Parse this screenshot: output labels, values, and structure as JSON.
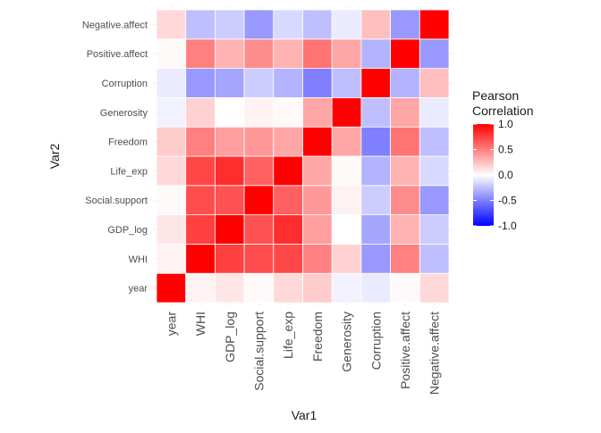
{
  "chart_data": {
    "type": "heatmap",
    "xlabel": "Var1",
    "ylabel": "Var2",
    "variables": [
      "year",
      "WHI",
      "GDP_log",
      "Social.support",
      "Life_exp",
      "Freedom",
      "Generosity",
      "Corruption",
      "Positive.affect",
      "Negative.affect"
    ],
    "matrix": [
      [
        1.0,
        0.05,
        0.1,
        0.02,
        0.15,
        0.2,
        -0.05,
        -0.08,
        0.02,
        0.15
      ],
      [
        0.05,
        1.0,
        0.75,
        0.7,
        0.72,
        0.5,
        0.18,
        -0.4,
        0.5,
        -0.25
      ],
      [
        0.1,
        0.75,
        1.0,
        0.68,
        0.82,
        0.38,
        0.0,
        -0.35,
        0.3,
        -0.2
      ],
      [
        0.02,
        0.7,
        0.68,
        1.0,
        0.62,
        0.4,
        0.05,
        -0.2,
        0.45,
        -0.4
      ],
      [
        0.15,
        0.72,
        0.82,
        0.62,
        1.0,
        0.35,
        0.02,
        -0.3,
        0.3,
        -0.15
      ],
      [
        0.2,
        0.5,
        0.38,
        0.4,
        0.35,
        1.0,
        0.35,
        -0.5,
        0.55,
        -0.25
      ],
      [
        -0.05,
        0.18,
        0.0,
        0.05,
        0.02,
        0.35,
        1.0,
        -0.25,
        0.35,
        -0.08
      ],
      [
        -0.08,
        -0.4,
        -0.35,
        -0.2,
        -0.3,
        -0.5,
        -0.25,
        1.0,
        -0.3,
        0.25
      ],
      [
        0.02,
        0.5,
        0.3,
        0.45,
        0.3,
        0.55,
        0.35,
        -0.3,
        1.0,
        -0.4
      ],
      [
        0.15,
        -0.25,
        -0.2,
        -0.4,
        -0.15,
        -0.25,
        -0.08,
        0.25,
        -0.4,
        1.0
      ]
    ],
    "legend": {
      "title_line1": "Pearson",
      "title_line2": "Correlation",
      "ticks": [
        "1.0",
        "0.5",
        "0.0",
        "-0.5",
        "-1.0"
      ],
      "tick_values": [
        1.0,
        0.5,
        0.0,
        -0.5,
        -1.0
      ],
      "limits": [
        -1,
        1
      ],
      "low_color": "#0000ff",
      "mid_color": "#ffffff",
      "high_color": "#ff0000"
    },
    "grid": true,
    "legend_position": "right"
  }
}
